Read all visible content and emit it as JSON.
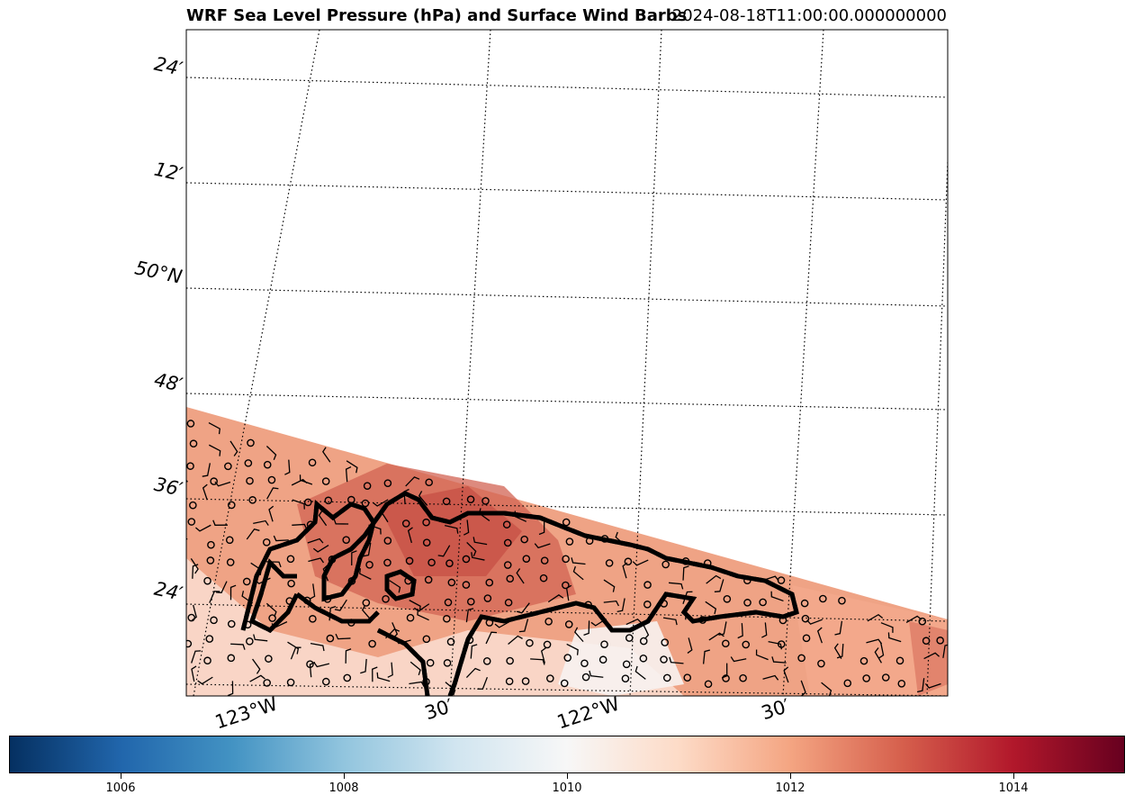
{
  "title": "WRF Sea Level Pressure (hPa) and Surface Wind Barbs",
  "timestamp": "2024-08-18T11:00:00.000000000",
  "map": {
    "lat_labels": [
      "24′",
      "12′",
      "50°N",
      "48′",
      "36′",
      "24′"
    ],
    "lon_labels": [
      "123°W",
      "30′",
      "122°W",
      "30′"
    ],
    "gridlines": "dotted",
    "coastline_style": "white dashed with black",
    "field": "sea level pressure",
    "overlay": "surface wind barbs"
  },
  "colorbar": {
    "colormap": "RdBu_r",
    "min": 1005,
    "max": 1015,
    "ticks": [
      "1006",
      "1008",
      "1010",
      "1012",
      "1014"
    ],
    "tick_values": [
      1006,
      1008,
      1010,
      1012,
      1014
    ],
    "colors": [
      "#053061",
      "#2166ac",
      "#4393c3",
      "#92c5de",
      "#d1e5f0",
      "#f7f7f7",
      "#fddbc7",
      "#f4a582",
      "#d6604d",
      "#b2182b",
      "#67001f"
    ]
  }
}
